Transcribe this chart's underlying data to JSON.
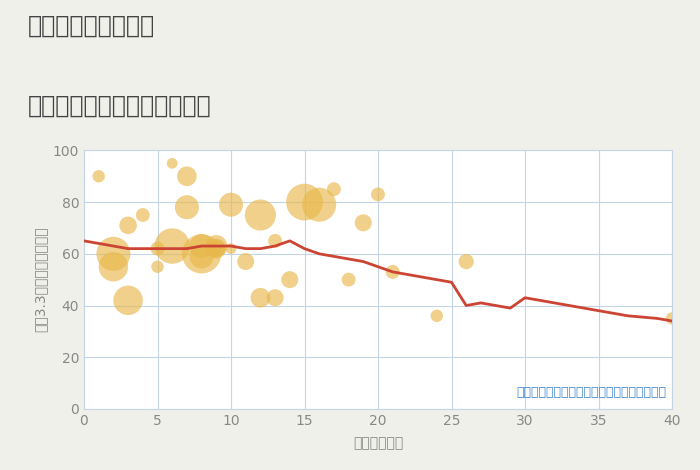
{
  "title_line1": "三重県松阪市中央町",
  "title_line2": "築年数別中古マンション価格",
  "xlabel": "築年数（年）",
  "ylabel": "平（3.3㎡）単価（万円）",
  "annotation": "円の大きさは、取引のあった物件面積を示す",
  "background_color": "#f0f0eb",
  "plot_bg_color": "#ffffff",
  "grid_color": "#c5d5e5",
  "bubble_color": "#e8b84b",
  "bubble_alpha": 0.65,
  "line_color": "#cc4433",
  "line_width": 2.0,
  "xlim": [
    0,
    40
  ],
  "ylim": [
    0,
    100
  ],
  "xticks": [
    0,
    5,
    10,
    15,
    20,
    25,
    30,
    35,
    40
  ],
  "yticks": [
    0,
    20,
    40,
    60,
    80,
    100
  ],
  "scatter_x": [
    1,
    2,
    2,
    3,
    3,
    4,
    5,
    5,
    6,
    6,
    7,
    7,
    8,
    8,
    8,
    9,
    9,
    9,
    10,
    10,
    11,
    12,
    12,
    13,
    13,
    14,
    15,
    16,
    17,
    18,
    19,
    20,
    21,
    24,
    26,
    40
  ],
  "scatter_y": [
    90,
    60,
    55,
    71,
    42,
    75,
    62,
    55,
    95,
    63,
    90,
    78,
    63,
    60,
    59,
    63,
    62,
    62,
    79,
    62,
    57,
    75,
    43,
    65,
    43,
    50,
    80,
    79,
    85,
    50,
    72,
    83,
    53,
    36,
    57,
    35
  ],
  "scatter_s": [
    80,
    600,
    450,
    160,
    450,
    100,
    100,
    80,
    60,
    650,
    200,
    300,
    300,
    800,
    300,
    250,
    200,
    150,
    300,
    60,
    150,
    500,
    200,
    100,
    150,
    150,
    700,
    600,
    100,
    100,
    150,
    100,
    100,
    80,
    120,
    80
  ],
  "line_x": [
    0,
    1,
    2,
    3,
    4,
    5,
    6,
    7,
    8,
    9,
    10,
    11,
    12,
    13,
    14,
    15,
    16,
    17,
    18,
    19,
    20,
    21,
    22,
    23,
    24,
    25,
    26,
    27,
    28,
    29,
    30,
    31,
    32,
    33,
    34,
    35,
    36,
    37,
    38,
    39,
    40
  ],
  "line_y": [
    65,
    64,
    63,
    62,
    62,
    62,
    62,
    62,
    63,
    63,
    63,
    62,
    62,
    63,
    65,
    62,
    60,
    59,
    58,
    57,
    55,
    53,
    52,
    51,
    50,
    49,
    40,
    41,
    40,
    39,
    43,
    42,
    41,
    40,
    39,
    38,
    37,
    36,
    35.5,
    35,
    34
  ],
  "title_fontsize": 17,
  "label_fontsize": 10,
  "tick_fontsize": 10,
  "annot_fontsize": 9,
  "title_color": "#444444",
  "axis_color": "#888888",
  "annot_color": "#4488cc"
}
